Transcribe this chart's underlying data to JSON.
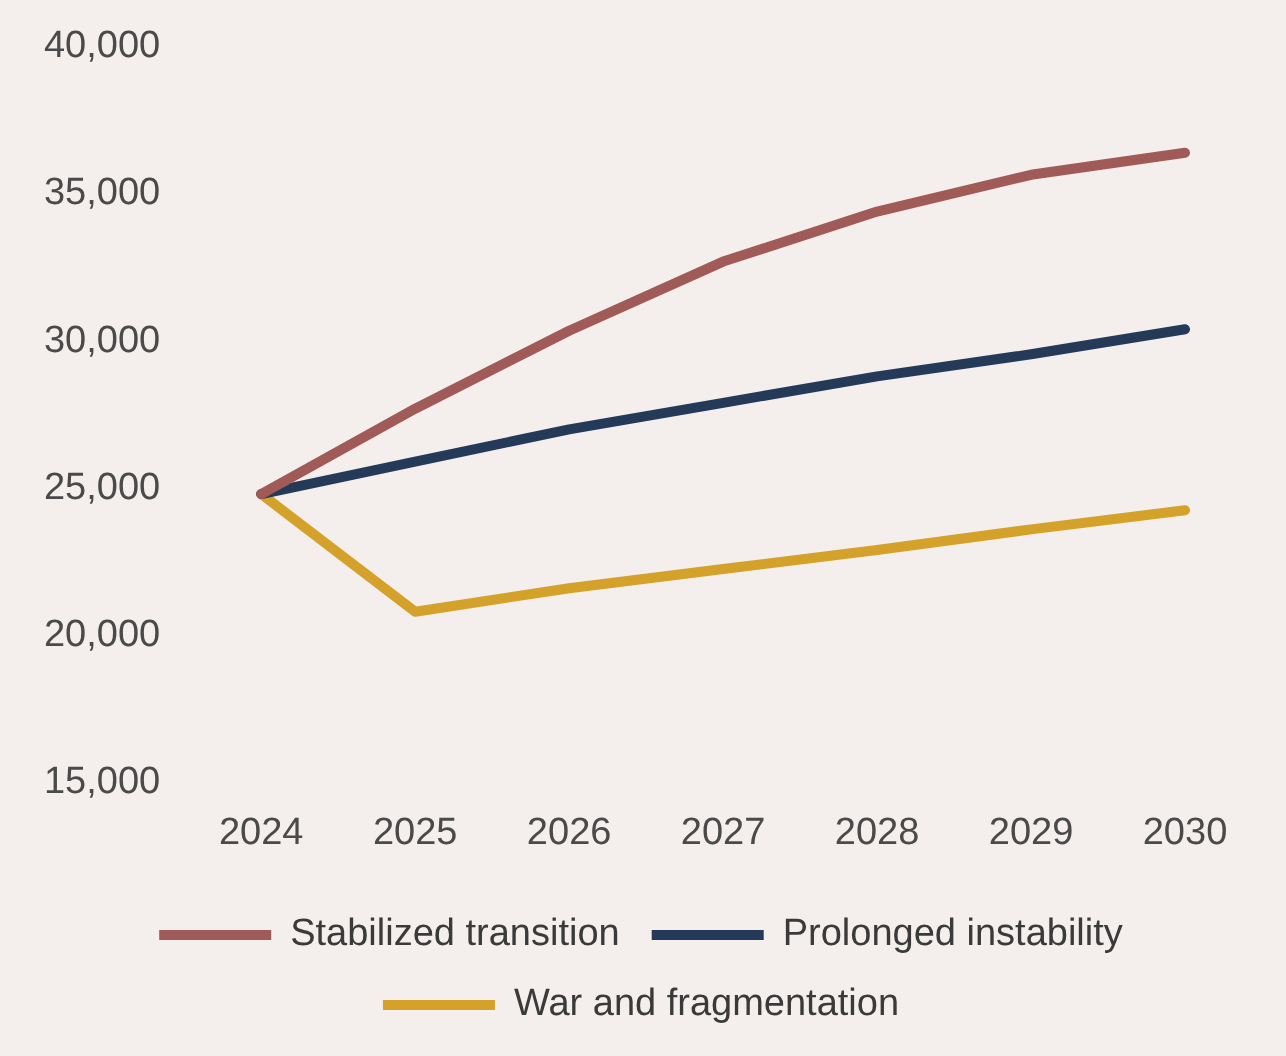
{
  "chart_data": {
    "type": "line",
    "categories": [
      "2024",
      "2025",
      "2026",
      "2027",
      "2028",
      "2029",
      "2030"
    ],
    "series": [
      {
        "name": "Stabilized transition",
        "color": "#a05a57",
        "values": [
          24800,
          27700,
          30350,
          32700,
          34400,
          35650,
          36400
        ]
      },
      {
        "name": "Prolonged instability",
        "color": "#243a58",
        "values": [
          24800,
          25900,
          27000,
          27900,
          28800,
          29550,
          30400
        ]
      },
      {
        "name": "War and fragmentation",
        "color": "#d4a22a",
        "values": [
          24800,
          20800,
          21600,
          22250,
          22900,
          23600,
          24250
        ]
      }
    ],
    "ylim": [
      15000,
      40000
    ],
    "yticks": [
      {
        "value": 15000,
        "label": "15,000"
      },
      {
        "value": 20000,
        "label": "20,000"
      },
      {
        "value": 25000,
        "label": "25,000"
      },
      {
        "value": 30000,
        "label": "30,000"
      },
      {
        "value": 35000,
        "label": "35,000"
      },
      {
        "value": 40000,
        "label": "40,000"
      }
    ],
    "grid": false,
    "legend": "bottom",
    "marker": "none",
    "line_style": "solid"
  }
}
